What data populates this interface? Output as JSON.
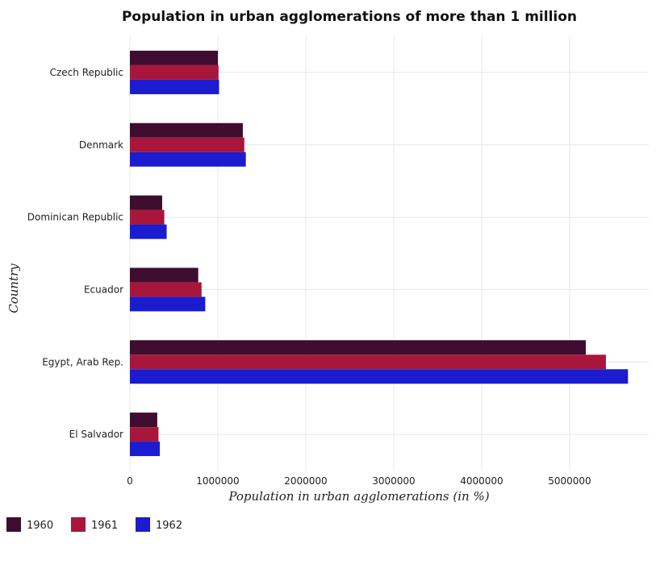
{
  "chart_data": {
    "type": "bar",
    "orientation": "horizontal",
    "title": "Population in urban agglomerations of more than 1 million",
    "xlabel": "Population in urban agglomerations (in %)",
    "ylabel": "Country",
    "xlim": [
      0,
      5900000
    ],
    "xticks": [
      0,
      1000000,
      2000000,
      3000000,
      4000000,
      5000000
    ],
    "xtick_labels": [
      "0",
      "1000000",
      "2000000",
      "3000000",
      "4000000",
      "5000000"
    ],
    "grid": true,
    "legend_position": "bottom-left",
    "categories": [
      "Czech Republic",
      "Denmark",
      "Dominican Republic",
      "Ecuador",
      "Egypt, Arab Rep.",
      "El Salvador"
    ],
    "series": [
      {
        "name": "1960",
        "color": "#3f0d2f",
        "values": [
          1001000,
          1284000,
          367000,
          777000,
          5184000,
          311000
        ]
      },
      {
        "name": "1961",
        "color": "#a8163c",
        "values": [
          1008000,
          1301000,
          391000,
          815000,
          5413000,
          325000
        ]
      },
      {
        "name": "1962",
        "color": "#1b1bcf",
        "values": [
          1014000,
          1318000,
          418000,
          857000,
          5664000,
          340000
        ]
      }
    ]
  }
}
